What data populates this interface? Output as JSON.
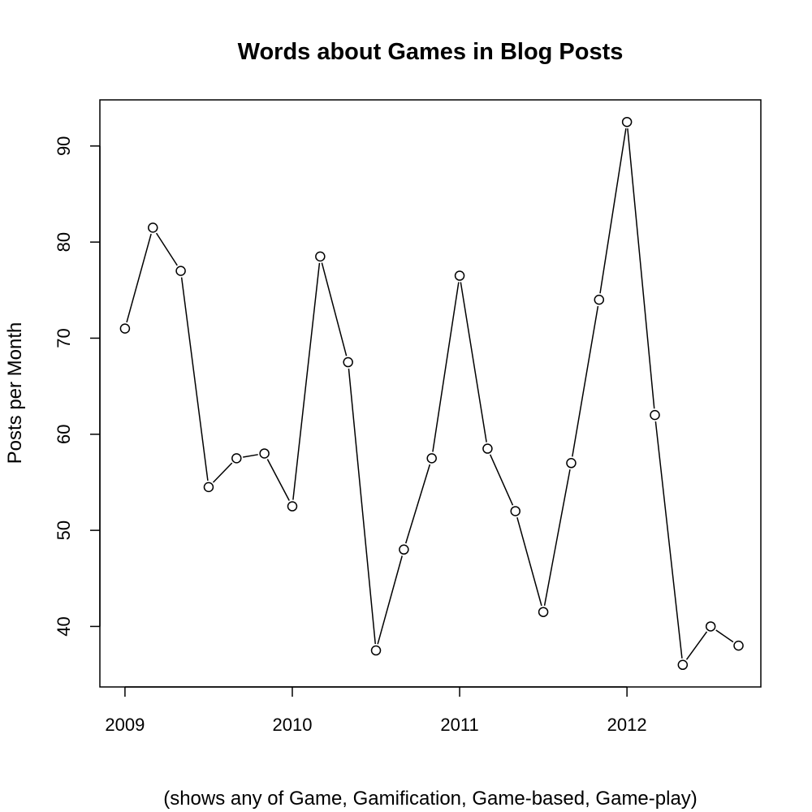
{
  "chart_data": {
    "type": "line",
    "title": "Words about Games in Blog Posts",
    "xlabel": "(shows any of Game, Gamification, Game-based, Game-play)",
    "ylabel": "Posts per Month",
    "x": [
      2009.0,
      2009.1667,
      2009.3333,
      2009.5,
      2009.6667,
      2009.8333,
      2010.0,
      2010.1667,
      2010.3333,
      2010.5,
      2010.6667,
      2010.8333,
      2011.0,
      2011.1667,
      2011.3333,
      2011.5,
      2011.6667,
      2011.8333,
      2012.0,
      2012.1667,
      2012.3333,
      2012.5,
      2012.6667
    ],
    "series": [
      {
        "values": [
          71,
          81.5,
          77,
          54.5,
          57.5,
          58,
          52.5,
          78.5,
          67.5,
          37.5,
          48,
          57.5,
          76.5,
          58.5,
          52,
          41.5,
          57,
          74,
          92.5,
          62,
          36,
          40,
          38
        ]
      }
    ],
    "xticks": [
      2009,
      2010,
      2011,
      2012
    ],
    "xtick_labels": [
      "2009",
      "2010",
      "2011",
      "2012"
    ],
    "yticks": [
      40,
      50,
      60,
      70,
      80,
      90
    ],
    "ytick_labels": [
      "40",
      "50",
      "60",
      "70",
      "80",
      "90"
    ],
    "xlim": [
      2008.85,
      2012.8
    ],
    "ylim": [
      33.7,
      94.8
    ],
    "grid": false,
    "marker": "open-circle",
    "line_color": "#000000"
  }
}
